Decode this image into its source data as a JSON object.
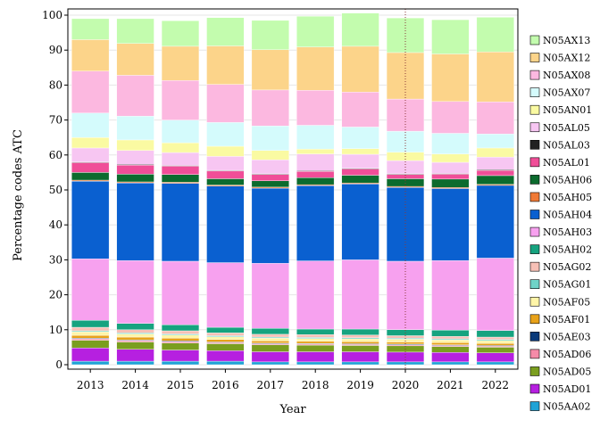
{
  "chart_data": {
    "type": "bar",
    "stacked": true,
    "xlabel": "Year",
    "ylabel": "Percentage codes ATC",
    "ylim": [
      0,
      100
    ],
    "yticks": [
      0,
      10,
      20,
      30,
      40,
      50,
      60,
      70,
      80,
      90,
      100
    ],
    "grid": true,
    "legend_position": "right",
    "annotation_vline": {
      "x": "2020",
      "color": "#8b3a3a",
      "style": "dotted"
    },
    "categories": [
      "2013",
      "2014",
      "2015",
      "2016",
      "2017",
      "2018",
      "2019",
      "2020",
      "2021",
      "2022"
    ],
    "series": [
      {
        "name": "N05AA02",
        "color": "#1fa3d6",
        "values": [
          1.0,
          1.0,
          1.0,
          1.0,
          0.8,
          0.8,
          0.8,
          0.8,
          0.8,
          0.8
        ]
      },
      {
        "name": "N05AD01",
        "color": "#b620e0",
        "values": [
          3.8,
          3.4,
          3.2,
          3.0,
          2.9,
          2.9,
          2.9,
          2.8,
          2.7,
          2.6
        ]
      },
      {
        "name": "N05AD05",
        "color": "#7a9e1f",
        "values": [
          2.2,
          2.1,
          2.0,
          2.0,
          2.0,
          1.9,
          1.8,
          1.8,
          1.7,
          1.6
        ]
      },
      {
        "name": "N05AD06",
        "color": "#f58ba8",
        "values": [
          0.4,
          0.4,
          0.4,
          0.3,
          0.3,
          0.3,
          0.3,
          0.3,
          0.3,
          0.3
        ]
      },
      {
        "name": "N05AE03",
        "color": "#0a3a7a",
        "values": [
          0.2,
          0.2,
          0.2,
          0.2,
          0.2,
          0.2,
          0.2,
          0.2,
          0.2,
          0.2
        ]
      },
      {
        "name": "N05AF01",
        "color": "#e8a21a",
        "values": [
          0.8,
          0.8,
          0.8,
          0.7,
          0.6,
          0.6,
          0.6,
          0.6,
          0.6,
          0.6
        ]
      },
      {
        "name": "N05AF05",
        "color": "#fff5a8",
        "values": [
          1.0,
          0.9,
          0.9,
          0.8,
          0.8,
          0.8,
          0.8,
          0.8,
          0.8,
          0.8
        ]
      },
      {
        "name": "N05AG01",
        "color": "#6fd4c8",
        "values": [
          0.3,
          0.3,
          0.3,
          0.3,
          0.3,
          0.3,
          0.3,
          0.3,
          0.3,
          0.3
        ]
      },
      {
        "name": "N05AG02",
        "color": "#f7c0b6",
        "values": [
          1.0,
          0.9,
          0.9,
          0.8,
          0.8,
          0.8,
          0.8,
          0.7,
          0.7,
          0.7
        ]
      },
      {
        "name": "N05AH02",
        "color": "#16a37f",
        "values": [
          2.0,
          1.8,
          1.7,
          1.6,
          1.7,
          1.6,
          1.7,
          1.7,
          1.8,
          1.9
        ]
      },
      {
        "name": "N05AH03",
        "color": "#f7a1ef",
        "values": [
          17.6,
          18.0,
          18.2,
          18.5,
          18.6,
          19.5,
          19.8,
          19.6,
          19.9,
          20.7
        ]
      },
      {
        "name": "N05AH04",
        "color": "#0a60d0",
        "values": [
          22.2,
          22.2,
          22.3,
          21.9,
          21.5,
          21.5,
          21.7,
          21.1,
          20.6,
          20.8
        ]
      },
      {
        "name": "N05AH05",
        "color": "#f07a36",
        "values": [
          0.3,
          0.3,
          0.3,
          0.3,
          0.3,
          0.3,
          0.3,
          0.3,
          0.3,
          0.3
        ]
      },
      {
        "name": "N05AH06",
        "color": "#0c6b2e",
        "values": [
          2.2,
          2.2,
          2.2,
          1.8,
          1.8,
          2.0,
          2.2,
          2.2,
          2.4,
          2.5
        ]
      },
      {
        "name": "N05AL01",
        "color": "#f04e98",
        "values": [
          2.8,
          2.6,
          2.4,
          2.2,
          1.8,
          1.8,
          1.8,
          1.2,
          1.4,
          1.5
        ]
      },
      {
        "name": "N05AL03",
        "color": "#222222",
        "values": [
          0.2,
          0.2,
          0.2,
          0.2,
          0.2,
          0.2,
          0.2,
          0.2,
          0.2,
          0.2
        ]
      },
      {
        "name": "N05AL05",
        "color": "#f7c6f2",
        "values": [
          4.0,
          4.0,
          3.7,
          4.0,
          4.0,
          4.8,
          4.0,
          3.8,
          3.2,
          3.6
        ]
      },
      {
        "name": "N05AN01",
        "color": "#fafaa2",
        "values": [
          3.0,
          3.0,
          2.8,
          2.9,
          2.7,
          1.4,
          1.6,
          2.4,
          2.4,
          2.6
        ]
      },
      {
        "name": "N05AX07",
        "color": "#d4fbfc",
        "values": [
          7.0,
          6.8,
          6.5,
          6.8,
          7.0,
          6.8,
          6.2,
          6.0,
          5.9,
          4.0
        ]
      },
      {
        "name": "N05AX08",
        "color": "#fcb8e0",
        "values": [
          12.0,
          11.7,
          11.3,
          10.9,
          10.3,
          10.0,
          10.0,
          9.2,
          9.1,
          9.2
        ]
      },
      {
        "name": "N05AX12",
        "color": "#fcd48a",
        "values": [
          9.0,
          9.1,
          9.8,
          11.0,
          11.5,
          12.4,
          13.1,
          13.3,
          13.6,
          14.3
        ]
      },
      {
        "name": "N05AX13",
        "color": "#c3fcae",
        "values": [
          6.0,
          7.1,
          7.3,
          8.1,
          8.4,
          8.8,
          9.5,
          9.9,
          9.8,
          9.9
        ]
      }
    ]
  }
}
